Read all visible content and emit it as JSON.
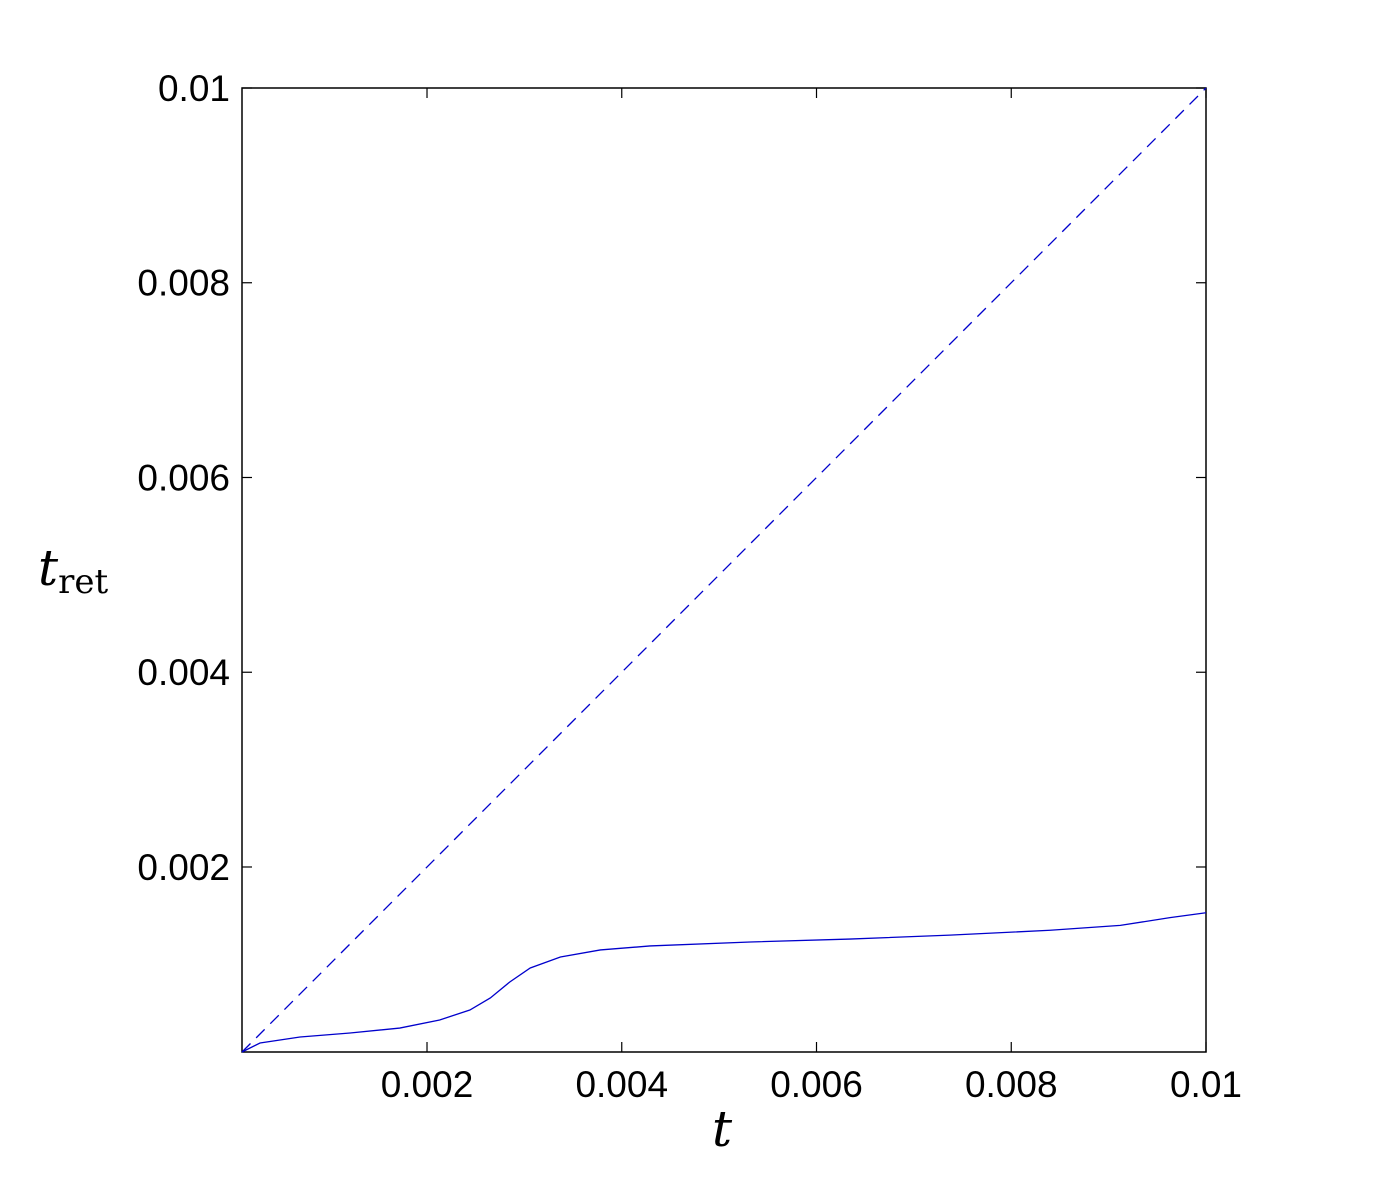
{
  "chart_data": {
    "type": "line",
    "x_label": "t",
    "y_label": "t",
    "y_label_subscript": "ret",
    "xlim": [
      0.0001,
      0.01
    ],
    "ylim": [
      0.0001,
      0.01
    ],
    "xticks": [
      0.002,
      0.004,
      0.006,
      0.008,
      0.01
    ],
    "yticks": [
      0.002,
      0.004,
      0.006,
      0.008,
      0.01
    ],
    "grid": false,
    "series": [
      {
        "color": "#0000cc",
        "linestyle": "solid",
        "x": [
          0.0001,
          0.000285,
          0.000696,
          0.00121,
          0.00172,
          0.00213,
          0.00244,
          0.00265,
          0.00285,
          0.00306,
          0.00337,
          0.00378,
          0.00429,
          0.00532,
          0.00634,
          0.00737,
          0.0084,
          0.00912,
          0.00963,
          0.01
        ],
        "values": [
          0.0001,
          0.000192,
          0.000254,
          0.000295,
          0.000346,
          0.000429,
          0.000531,
          0.000655,
          0.000819,
          0.000963,
          0.001076,
          0.001148,
          0.001189,
          0.00123,
          0.00126,
          0.0013,
          0.00135,
          0.0014,
          0.00148,
          0.00153
        ]
      },
      {
        "color": "#0000cc",
        "linestyle": "dashed",
        "x": [
          0.0001,
          0.01
        ],
        "values": [
          0.0001,
          0.01
        ]
      }
    ]
  }
}
